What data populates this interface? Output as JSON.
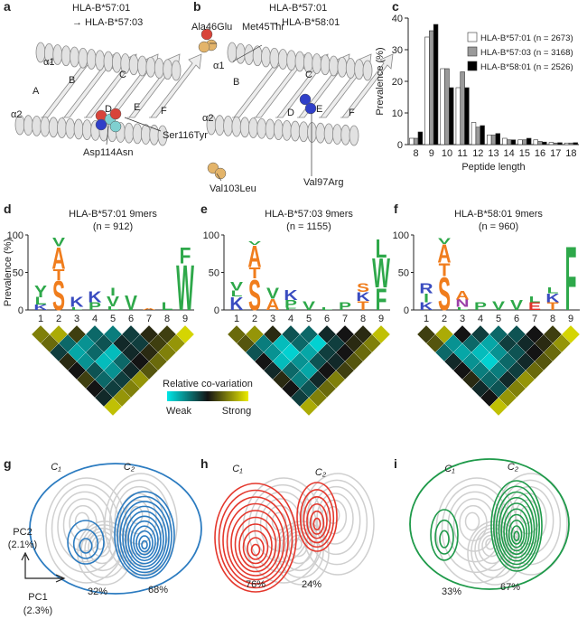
{
  "panel_a": {
    "letter": "a",
    "title": "HLA-B*57:01",
    "subtitle": "→ HLA-B*57:03",
    "labels": [
      "α1",
      "A",
      "B",
      "C",
      "D",
      "E",
      "F",
      "α2",
      "Asp114Asn",
      "Ser116Tyr"
    ]
  },
  "panel_b": {
    "letter": "b",
    "title": "HLA-B*57:01",
    "subtitle": "→ HLA-B*58:01",
    "labels": [
      "Ala46Glu",
      "Met45Thr",
      "α1",
      "B",
      "C",
      "D",
      "E",
      "F",
      "α2",
      "Val103Leu",
      "Val97Arg"
    ]
  },
  "chart_data": {
    "type": "bar",
    "letter": "c",
    "xlabel": "Peptide length",
    "ylabel": "Prevalence (%)",
    "categories": [
      "8",
      "9",
      "10",
      "11",
      "12",
      "13",
      "14",
      "15",
      "16",
      "17",
      "18"
    ],
    "ylim": [
      0,
      40
    ],
    "yticks": [
      0,
      10,
      20,
      30,
      40
    ],
    "series": [
      {
        "name": "HLA-B*57:01 (n = 2673)",
        "color": "#ffffff",
        "values": [
          2,
          34,
          24,
          18,
          7,
          3,
          2,
          1.5,
          1.5,
          0.7,
          0.5
        ]
      },
      {
        "name": "HLA-B*57:03 (n = 3168)",
        "color": "#9a9a9a",
        "values": [
          2,
          36,
          24,
          23,
          5.5,
          3,
          1.5,
          1.5,
          1,
          0.5,
          0.5
        ]
      },
      {
        "name": "HLA-B*58:01 (n = 2526)",
        "color": "#000000",
        "values": [
          4,
          38,
          18,
          18,
          6,
          3.5,
          1.5,
          2,
          0.8,
          0.6,
          0.6
        ]
      }
    ]
  },
  "aa_colors": {
    "K": "#3a4cc0",
    "R": "#3a4cc0",
    "S": "#f07d1d",
    "T": "#f07d1d",
    "A": "#f07d1d",
    "Y": "#2ea84a",
    "V": "#2ea84a",
    "L": "#2ea84a",
    "I": "#2ea84a",
    "F": "#2ea84a",
    "W": "#2ea84a",
    "P": "#2ea84a",
    "N": "#9b3fa8",
    "E": "#e03228"
  },
  "logos": [
    {
      "letter": "d",
      "title": "HLA-B*57:01 9mers",
      "n": "(n = 912)",
      "color": "#4a6ac6",
      "ylabel": "Prevalence (%)",
      "ylim": [
        0,
        100
      ],
      "yticks": [
        0,
        50,
        100
      ],
      "positions": [
        "1",
        "2",
        "3",
        "4",
        "5",
        "6",
        "7",
        "8",
        "9"
      ],
      "stacks": [
        [
          {
            "aa": "K",
            "height": 7
          },
          {
            "aa": "L",
            "height": 10
          },
          {
            "aa": "Y",
            "height": 16
          }
        ],
        [
          {
            "aa": "S",
            "height": 40
          },
          {
            "aa": "T",
            "height": 15
          },
          {
            "aa": "A",
            "height": 30
          },
          {
            "aa": "V",
            "height": 12
          }
        ],
        [
          {
            "aa": "L",
            "height": 4
          },
          {
            "aa": "K",
            "height": 14
          }
        ],
        [
          {
            "aa": "P",
            "height": 10
          },
          {
            "aa": "K",
            "height": 15
          }
        ],
        [
          {
            "aa": "L",
            "height": 5
          },
          {
            "aa": "V",
            "height": 14
          },
          {
            "aa": "I",
            "height": 10
          }
        ],
        [
          {
            "aa": "V",
            "height": 20
          }
        ],
        [
          {
            "aa": "A",
            "height": 2
          }
        ],
        [
          {
            "aa": "L",
            "height": 10
          }
        ],
        [
          {
            "aa": "W",
            "height": 62
          },
          {
            "aa": "F",
            "height": 22
          }
        ]
      ],
      "covariation": [
        [
          0.75,
          0.85,
          0.6,
          0.3,
          0.25,
          0.4,
          0.55,
          0.6,
          0.95
        ],
        [
          0.7,
          0.3,
          0.2,
          0.35,
          0.45,
          0.4,
          0.6,
          0.8
        ],
        [
          0.4,
          0.15,
          0.3,
          0.1,
          0.45,
          0.55,
          0.75
        ],
        [
          0.55,
          0.2,
          0.1,
          0.3,
          0.5,
          0.7
        ],
        [
          0.5,
          0.35,
          0.2,
          0.45,
          0.65
        ],
        [
          0.6,
          0.3,
          0.4,
          0.8
        ],
        [
          0.5,
          0.4,
          0.75
        ],
        [
          0.45,
          0.8
        ],
        [
          0.9
        ]
      ]
    },
    {
      "letter": "e",
      "title": "HLA-B*57:03 9mers",
      "n": "(n = 1155)",
      "color": "#e8553a",
      "ylabel": "Prevalence (%)",
      "ylim": [
        0,
        100
      ],
      "yticks": [
        0,
        50,
        100
      ],
      "positions": [
        "1",
        "2",
        "3",
        "4",
        "5",
        "6",
        "7",
        "8",
        "9"
      ],
      "stacks": [
        [
          {
            "aa": "K",
            "height": 18
          },
          {
            "aa": "L",
            "height": 8
          },
          {
            "aa": "V",
            "height": 12
          }
        ],
        [
          {
            "aa": "S",
            "height": 42
          },
          {
            "aa": "T",
            "height": 15
          },
          {
            "aa": "A",
            "height": 30
          },
          {
            "aa": "V",
            "height": 5
          }
        ],
        [
          {
            "aa": "A",
            "height": 15
          },
          {
            "aa": "V",
            "height": 15
          }
        ],
        [
          {
            "aa": "F",
            "height": 3
          },
          {
            "aa": "P",
            "height": 10
          },
          {
            "aa": "K",
            "height": 14
          }
        ],
        [
          {
            "aa": "V",
            "height": 12
          }
        ],
        [
          {
            "aa": "L",
            "height": 4
          }
        ],
        [
          {
            "aa": "P",
            "height": 10
          }
        ],
        [
          {
            "aa": "T",
            "height": 12
          },
          {
            "aa": "K",
            "height": 12
          },
          {
            "aa": "S",
            "height": 12
          }
        ],
        [
          {
            "aa": "F",
            "height": 30
          },
          {
            "aa": "W",
            "height": 40
          },
          {
            "aa": "L",
            "height": 25
          }
        ]
      ],
      "covariation": [
        [
          0.7,
          0.8,
          0.55,
          0.35,
          0.3,
          0.45,
          0.5,
          0.55,
          0.9
        ],
        [
          0.65,
          0.25,
          0.1,
          0.3,
          0.05,
          0.4,
          0.55,
          0.75
        ],
        [
          0.35,
          0.2,
          0.05,
          0.15,
          0.4,
          0.5,
          0.7
        ],
        [
          0.5,
          0.1,
          0.2,
          0.35,
          0.45,
          0.65
        ],
        [
          0.45,
          0.3,
          0.15,
          0.5,
          0.6
        ],
        [
          0.55,
          0.25,
          0.45,
          0.75
        ],
        [
          0.5,
          0.35,
          0.7
        ],
        [
          0.4,
          0.75
        ],
        [
          0.85
        ]
      ]
    },
    {
      "letter": "f",
      "title": "HLA-B*58:01 9mers",
      "n": "(n = 960)",
      "color": "#3aa64a",
      "ylabel": "Prevalence (%)",
      "ylim": [
        0,
        100
      ],
      "yticks": [
        0,
        50,
        100
      ],
      "positions": [
        "1",
        "2",
        "3",
        "4",
        "5",
        "6",
        "7",
        "8",
        "9"
      ],
      "stacks": [
        [
          {
            "aa": "K",
            "height": 10
          },
          {
            "aa": "I",
            "height": 12
          },
          {
            "aa": "R",
            "height": 14
          }
        ],
        [
          {
            "aa": "S",
            "height": 45
          },
          {
            "aa": "T",
            "height": 18
          },
          {
            "aa": "A",
            "height": 25
          },
          {
            "aa": "V",
            "height": 8
          }
        ],
        [
          {
            "aa": "L",
            "height": 4
          },
          {
            "aa": "N",
            "height": 10
          },
          {
            "aa": "A",
            "height": 12
          }
        ],
        [
          {
            "aa": "P",
            "height": 10
          }
        ],
        [
          {
            "aa": "V",
            "height": 12
          }
        ],
        [
          {
            "aa": "V",
            "height": 14
          }
        ],
        [
          {
            "aa": "E",
            "height": 10
          },
          {
            "aa": "L",
            "height": 8
          }
        ],
        [
          {
            "aa": "T",
            "height": 10
          },
          {
            "aa": "K",
            "height": 12
          },
          {
            "aa": "L",
            "height": 8
          }
        ],
        [
          {
            "aa": "F",
            "height": 88
          }
        ]
      ],
      "covariation": [
        [
          0.6,
          0.85,
          0.5,
          0.4,
          0.3,
          0.35,
          0.5,
          0.6,
          0.95
        ],
        [
          0.65,
          0.2,
          0.3,
          0.15,
          0.4,
          0.45,
          0.55,
          0.8
        ],
        [
          0.3,
          0.15,
          0.1,
          0.2,
          0.35,
          0.5,
          0.7
        ],
        [
          0.45,
          0.2,
          0.05,
          0.3,
          0.45,
          0.65
        ],
        [
          0.5,
          0.25,
          0.25,
          0.4,
          0.7
        ],
        [
          0.55,
          0.3,
          0.45,
          0.8
        ],
        [
          0.45,
          0.35,
          0.75
        ],
        [
          0.5,
          0.8
        ],
        [
          0.9
        ]
      ]
    }
  ],
  "covariation_scale": {
    "title": "Relative co-variation",
    "low": "Weak",
    "high": "Strong"
  },
  "pca": {
    "axis_y": [
      "PC2",
      "(2.1%)"
    ],
    "axis_x": [
      "PC1",
      "(2.3%)"
    ],
    "panels": [
      {
        "letter": "g",
        "color": "#2b7bc0",
        "clusters": [
          "C₁",
          "C₂"
        ],
        "shares": [
          "32%",
          "68%"
        ]
      },
      {
        "letter": "h",
        "color": "#e4372c",
        "clusters": [
          "C₁",
          "C₂"
        ],
        "shares": [
          "76%",
          "24%"
        ]
      },
      {
        "letter": "i",
        "color": "#1f9a4a",
        "clusters": [
          "C₁",
          "C₂"
        ],
        "shares": [
          "33%",
          "67%"
        ]
      }
    ]
  }
}
